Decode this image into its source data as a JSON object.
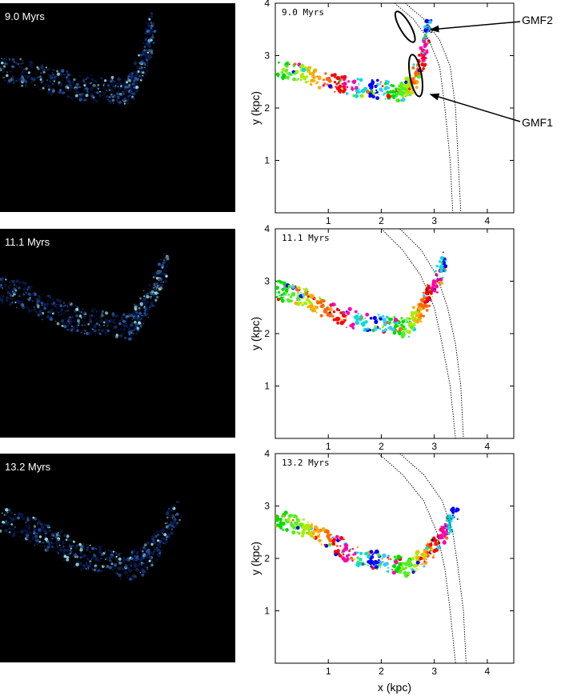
{
  "panels": [
    {
      "time": "9.0 Myrs"
    },
    {
      "time": "11.1 Myrs"
    },
    {
      "time": "13.2 Myrs"
    }
  ],
  "axes": {
    "xlabel": "x (kpc)",
    "ylabel": "y (kpc)",
    "xticks": [
      "1",
      "2",
      "3",
      "4"
    ],
    "yticks": [
      "1",
      "2",
      "3",
      "4"
    ]
  },
  "annotations": {
    "gmf1": "GMF1",
    "gmf2": "GMF2"
  },
  "colors": {
    "sim_bg": "#000000",
    "gas_dark": "#0b1e5a",
    "gas_mid": "#2a5fb8",
    "gas_bright": "#9fe9e0",
    "clump_palette": [
      "#00dd00",
      "#55ee22",
      "#aaee00",
      "#ffaa00",
      "#ff6600",
      "#ff0000",
      "#ff00aa",
      "#00dddd",
      "#0000ff",
      "#33ccff"
    ]
  },
  "chart_data": [
    {
      "type": "scatter",
      "time": "9.0 Myrs",
      "xlim": [
        0,
        4.5
      ],
      "ylim": [
        0,
        4
      ],
      "xticks": [
        1,
        2,
        3,
        4
      ],
      "yticks": [
        1,
        2,
        3,
        4
      ],
      "spiral_arm_inner": [
        [
          2.25,
          4.0
        ],
        [
          2.6,
          3.7
        ],
        [
          2.9,
          3.3
        ],
        [
          3.1,
          2.8
        ],
        [
          3.2,
          2.0
        ],
        [
          3.3,
          1.0
        ],
        [
          3.35,
          0.0
        ]
      ],
      "spiral_arm_outer": [
        [
          2.45,
          4.0
        ],
        [
          2.8,
          3.7
        ],
        [
          3.1,
          3.3
        ],
        [
          3.3,
          2.8
        ],
        [
          3.4,
          2.0
        ],
        [
          3.45,
          1.0
        ],
        [
          3.5,
          0.0
        ]
      ],
      "gas_ridge": [
        [
          0.0,
          2.75
        ],
        [
          0.5,
          2.65
        ],
        [
          1.0,
          2.5
        ],
        [
          1.5,
          2.4
        ],
        [
          2.0,
          2.35
        ],
        [
          2.4,
          2.3
        ],
        [
          2.6,
          2.5
        ],
        [
          2.8,
          3.0
        ],
        [
          2.9,
          3.6
        ]
      ],
      "gmf_ellipses": [
        {
          "label": "GMF2",
          "cx": 2.45,
          "cy": 3.55,
          "rx": 0.33,
          "ry": 0.1,
          "angle_deg": 60
        },
        {
          "label": "GMF1",
          "cx": 2.65,
          "cy": 2.62,
          "rx": 0.4,
          "ry": 0.11,
          "angle_deg": 80
        }
      ]
    },
    {
      "type": "scatter",
      "time": "11.1 Myrs",
      "xlim": [
        0,
        4.5
      ],
      "ylim": [
        0,
        4
      ],
      "xticks": [
        1,
        2,
        3,
        4
      ],
      "yticks": [
        1,
        2,
        3,
        4
      ],
      "spiral_arm_inner": [
        [
          2.0,
          4.0
        ],
        [
          2.4,
          3.6
        ],
        [
          2.75,
          3.1
        ],
        [
          3.0,
          2.5
        ],
        [
          3.15,
          1.8
        ],
        [
          3.3,
          1.0
        ],
        [
          3.4,
          0.0
        ]
      ],
      "spiral_arm_outer": [
        [
          2.35,
          4.0
        ],
        [
          2.75,
          3.6
        ],
        [
          3.05,
          3.1
        ],
        [
          3.25,
          2.5
        ],
        [
          3.4,
          1.8
        ],
        [
          3.5,
          1.0
        ],
        [
          3.55,
          0.0
        ]
      ],
      "gas_ridge": [
        [
          0.0,
          2.85
        ],
        [
          0.5,
          2.7
        ],
        [
          1.0,
          2.45
        ],
        [
          1.5,
          2.25
        ],
        [
          2.0,
          2.2
        ],
        [
          2.5,
          2.1
        ],
        [
          2.7,
          2.4
        ],
        [
          3.0,
          2.9
        ],
        [
          3.2,
          3.4
        ]
      ]
    },
    {
      "type": "scatter",
      "time": "13.2 Myrs",
      "xlim": [
        0,
        4.5
      ],
      "ylim": [
        0,
        4
      ],
      "xticks": [
        1,
        2,
        3,
        4
      ],
      "yticks": [
        1,
        2,
        3,
        4
      ],
      "spiral_arm_inner": [
        [
          1.95,
          4.0
        ],
        [
          2.4,
          3.6
        ],
        [
          2.8,
          3.1
        ],
        [
          3.05,
          2.5
        ],
        [
          3.2,
          1.8
        ],
        [
          3.3,
          1.0
        ],
        [
          3.4,
          0.0
        ]
      ],
      "spiral_arm_outer": [
        [
          2.35,
          4.0
        ],
        [
          2.8,
          3.6
        ],
        [
          3.15,
          3.1
        ],
        [
          3.35,
          2.5
        ],
        [
          3.45,
          1.8
        ],
        [
          3.55,
          1.0
        ],
        [
          3.6,
          0.0
        ]
      ],
      "gas_ridge": [
        [
          0.0,
          2.75
        ],
        [
          0.5,
          2.6
        ],
        [
          1.0,
          2.35
        ],
        [
          1.5,
          2.05
        ],
        [
          2.0,
          1.95
        ],
        [
          2.5,
          1.8
        ],
        [
          2.8,
          2.0
        ],
        [
          3.1,
          2.4
        ],
        [
          3.4,
          2.9
        ]
      ]
    }
  ]
}
